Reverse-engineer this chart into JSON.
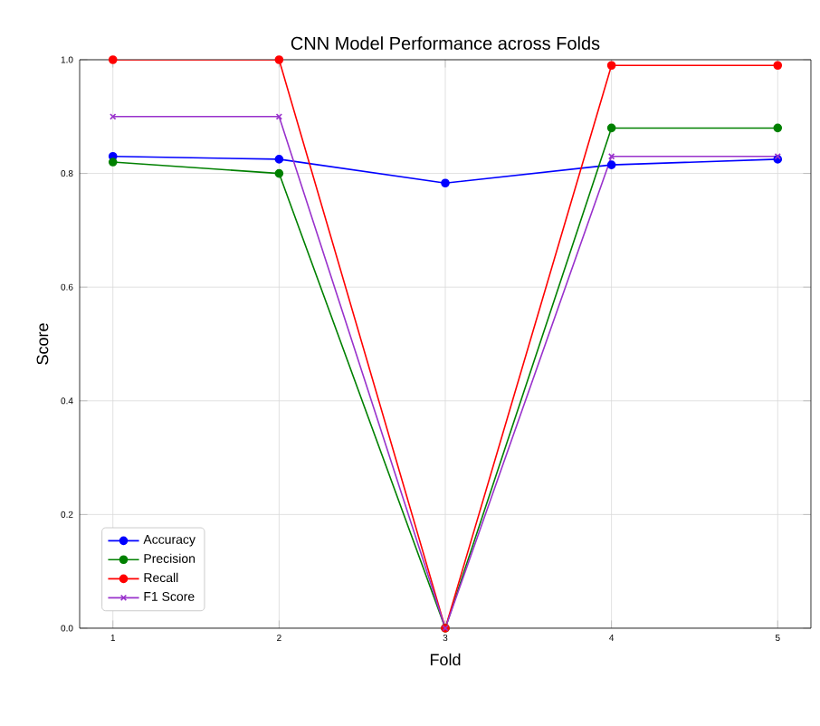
{
  "chart_data": {
    "type": "line",
    "title": "CNN Model Performance across Folds",
    "xlabel": "Fold",
    "ylabel": "Score",
    "x": [
      1,
      2,
      3,
      4,
      5
    ],
    "series": [
      {
        "name": "Accuracy",
        "color": "#0000ff",
        "marker": "circle",
        "values": [
          0.83,
          0.825,
          0.783,
          0.815,
          0.825
        ]
      },
      {
        "name": "Precision",
        "color": "#008000",
        "marker": "circle",
        "values": [
          0.82,
          0.8,
          0,
          0.88,
          0.88
        ]
      },
      {
        "name": "Recall",
        "color": "#ff0000",
        "marker": "circle",
        "values": [
          1.0,
          1.0,
          0,
          0.99,
          0.99
        ]
      },
      {
        "name": "F1 Score",
        "color": "#9932cc",
        "marker": "cross",
        "values": [
          0.9,
          0.9,
          0,
          0.83,
          0.83
        ]
      }
    ],
    "xlim": [
      0.8,
      5.2
    ],
    "xticks": [
      1,
      2,
      3,
      4,
      5
    ],
    "ylim": [
      0,
      1
    ],
    "yticks": [
      {
        "value": 0,
        "label": "0.0"
      },
      0.2,
      0.4,
      0.6,
      0.8,
      {
        "value": 1,
        "label": "1.0"
      }
    ],
    "grid": true,
    "legend": "bottom left",
    "line_style": "solid"
  }
}
